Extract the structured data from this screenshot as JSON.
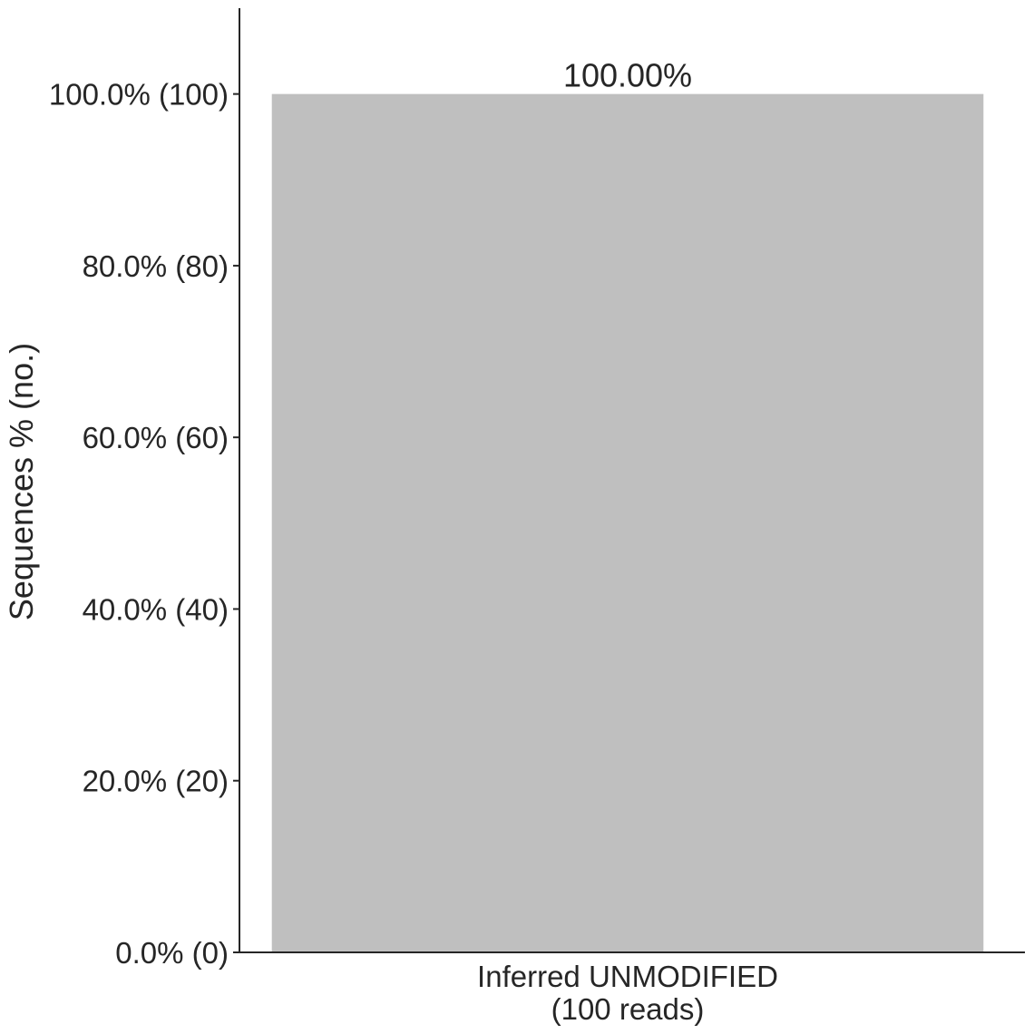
{
  "chart_data": {
    "type": "bar",
    "title": "",
    "xlabel": "",
    "ylabel": "Sequences % (no.)",
    "ylim": [
      0,
      110
    ],
    "grid": false,
    "categories": [
      "Inferred UNMODIFIED\n(100 reads)"
    ],
    "values": [
      100
    ],
    "data_labels": [
      "100.00%"
    ],
    "y_ticks": [
      {
        "value": 0,
        "label": "0.0% (0)"
      },
      {
        "value": 20,
        "label": "20.0% (20)"
      },
      {
        "value": 40,
        "label": "40.0% (40)"
      },
      {
        "value": 60,
        "label": "60.0% (60)"
      },
      {
        "value": 80,
        "label": "80.0% (80)"
      },
      {
        "value": 100,
        "label": "100.0% (100)"
      }
    ],
    "bar_color": "#bfbfbf",
    "axis_color": "#262626"
  }
}
